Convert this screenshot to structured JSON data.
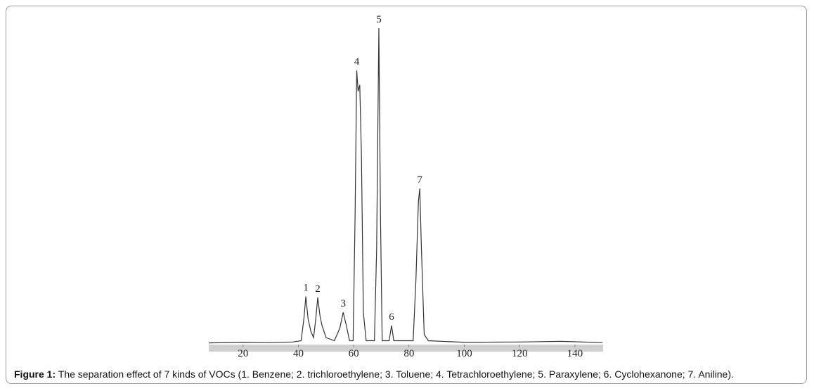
{
  "chart_data": {
    "type": "line",
    "x": [
      7.6,
      20,
      30,
      38,
      41,
      42,
      42.7,
      43.5,
      44.5,
      45.5,
      46.3,
      47,
      47.8,
      48.5,
      50,
      53,
      55,
      56.2,
      57.3,
      58.5,
      59.8,
      60.5,
      61.1,
      61.6,
      62.2,
      62.8,
      63.5,
      64.5,
      67.5,
      68.3,
      69.1,
      69.7,
      70.3,
      72.8,
      73.7,
      74.5,
      81.5,
      82.5,
      83.4,
      83.9,
      84.5,
      85.5,
      87,
      100,
      120,
      135,
      150
    ],
    "values": [
      0.3,
      0.5,
      0.4,
      0.6,
      1,
      8,
      15,
      8,
      4,
      2,
      8,
      14.7,
      9,
      6,
      2,
      1,
      5,
      10,
      6,
      1,
      1,
      40,
      86.6,
      80,
      82,
      60,
      10,
      1,
      1,
      30,
      100,
      40,
      1,
      1,
      5.8,
      1,
      1,
      20,
      45,
      49.2,
      30,
      3,
      1,
      0.5,
      0.6,
      0.8,
      0.4
    ],
    "color": "#333333",
    "xlim": [
      7.6,
      150.2
    ],
    "xticks": [
      20,
      40,
      60,
      80,
      100,
      120,
      140
    ],
    "ylim": [
      0,
      100
    ],
    "peaks": [
      {
        "label": "1",
        "x": 42.7,
        "value": 15
      },
      {
        "label": "2",
        "x": 47,
        "value": 14.7
      },
      {
        "label": "3",
        "x": 56.2,
        "value": 10
      },
      {
        "label": "4",
        "x": 61.1,
        "value": 86.6
      },
      {
        "label": "5",
        "x": 69.1,
        "value": 100
      },
      {
        "label": "6",
        "x": 73.7,
        "value": 5.8
      },
      {
        "label": "7",
        "x": 83.9,
        "value": 49.2
      }
    ]
  },
  "caption": {
    "label": "Figure 1:",
    "text": "The separation effect of 7 kinds of VOCs (1. Benzene; 2. trichloroethylene; 3. Toluene; 4. Tetrachloroethylene; 5. Paraxylene; 6. Cyclohexanone; 7. Aniline)."
  }
}
